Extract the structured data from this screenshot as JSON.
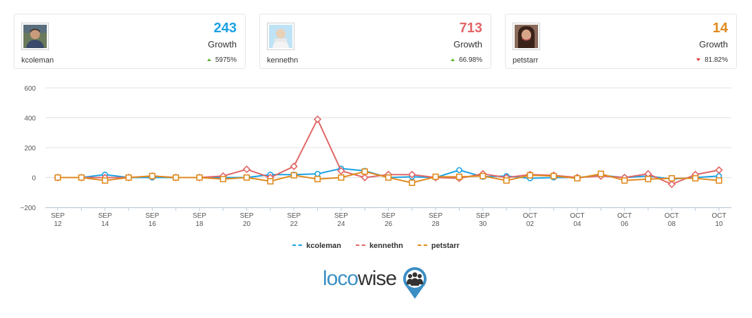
{
  "cards": [
    {
      "username": "kcoleman",
      "count": "243",
      "growth_label": "Growth",
      "change": "5975%",
      "direction": "up",
      "color": "#1ba1e2"
    },
    {
      "username": "kennethn",
      "count": "713",
      "growth_label": "Growth",
      "change": "66.98%",
      "direction": "up",
      "color": "#e06666"
    },
    {
      "username": "petstarr",
      "count": "14",
      "growth_label": "Growth",
      "change": "81.82%",
      "direction": "down",
      "color": "#e08a1e"
    }
  ],
  "chart_data": {
    "type": "line",
    "x": [
      "SEP 12",
      "SEP 13",
      "SEP 14",
      "SEP 15",
      "SEP 16",
      "SEP 17",
      "SEP 18",
      "SEP 19",
      "SEP 20",
      "SEP 21",
      "SEP 22",
      "SEP 23",
      "SEP 24",
      "SEP 25",
      "SEP 26",
      "SEP 27",
      "SEP 28",
      "SEP 29",
      "SEP 30",
      "OCT 01",
      "OCT 02",
      "OCT 03",
      "OCT 04",
      "OCT 05",
      "OCT 06",
      "OCT 07",
      "OCT 08",
      "OCT 09",
      "OCT 10"
    ],
    "x_tick_labels": [
      {
        "index": 0,
        "line1": "SEP",
        "line2": "12"
      },
      {
        "index": 2,
        "line1": "SEP",
        "line2": "14"
      },
      {
        "index": 4,
        "line1": "SEP",
        "line2": "16"
      },
      {
        "index": 6,
        "line1": "SEP",
        "line2": "18"
      },
      {
        "index": 8,
        "line1": "SEP",
        "line2": "20"
      },
      {
        "index": 10,
        "line1": "SEP",
        "line2": "22"
      },
      {
        "index": 12,
        "line1": "SEP",
        "line2": "24"
      },
      {
        "index": 14,
        "line1": "SEP",
        "line2": "26"
      },
      {
        "index": 16,
        "line1": "SEP",
        "line2": "28"
      },
      {
        "index": 18,
        "line1": "SEP",
        "line2": "30"
      },
      {
        "index": 20,
        "line1": "OCT",
        "line2": "02"
      },
      {
        "index": 22,
        "line1": "OCT",
        "line2": "04"
      },
      {
        "index": 24,
        "line1": "OCT",
        "line2": "06"
      },
      {
        "index": 26,
        "line1": "OCT",
        "line2": "08"
      },
      {
        "index": 28,
        "line1": "OCT",
        "line2": "10"
      }
    ],
    "y_ticks": [
      600,
      400,
      200,
      0,
      -200
    ],
    "y_tick_labels": [
      "600",
      "400",
      "200",
      "0",
      "−200"
    ],
    "ylim": [
      -200,
      600
    ],
    "grid": true,
    "legend": "bottom-center",
    "series": [
      {
        "name": "kcoleman",
        "color": "#1ba1e2",
        "marker": "circle",
        "values": [
          0,
          0,
          20,
          0,
          0,
          0,
          0,
          0,
          0,
          20,
          20,
          25,
          60,
          45,
          0,
          5,
          0,
          50,
          5,
          10,
          -5,
          0,
          0,
          15,
          0,
          10,
          -10,
          0,
          10
        ]
      },
      {
        "name": "kennethn",
        "color": "#e06666",
        "marker": "diamond",
        "values": [
          0,
          0,
          0,
          0,
          10,
          0,
          0,
          10,
          55,
          0,
          75,
          390,
          45,
          0,
          20,
          20,
          0,
          -5,
          25,
          0,
          20,
          15,
          0,
          10,
          0,
          25,
          -45,
          20,
          50
        ]
      },
      {
        "name": "petstarr",
        "color": "#e08a1e",
        "marker": "square",
        "values": [
          0,
          0,
          -20,
          0,
          10,
          0,
          0,
          -10,
          0,
          -25,
          15,
          -10,
          0,
          40,
          0,
          -35,
          5,
          5,
          10,
          -20,
          15,
          10,
          -5,
          25,
          -20,
          -10,
          -5,
          -5,
          -20
        ]
      }
    ]
  },
  "logo": {
    "part1": "loco",
    "part2": "wise"
  }
}
